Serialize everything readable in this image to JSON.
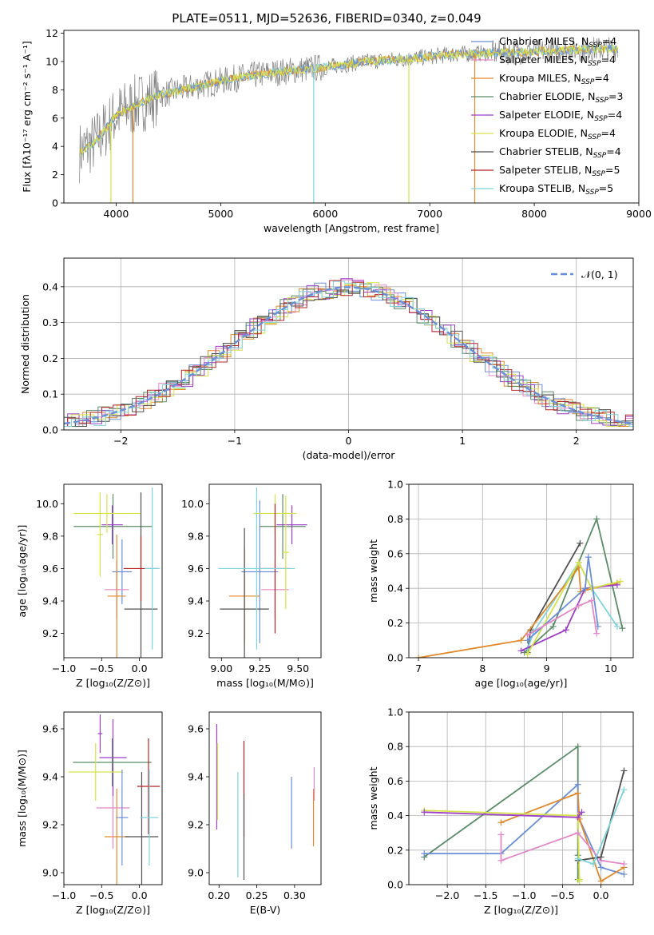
{
  "colors": {
    "gray": "#808080",
    "palette": [
      "#6b8fd6",
      "#e388c8",
      "#e08a2c",
      "#5b8c68",
      "#9d3fc9",
      "#d6e24a",
      "#505050",
      "#b52525",
      "#7fd3db"
    ]
  },
  "chart_data": [
    {
      "id": "spectrum",
      "type": "line",
      "title": "PLATE=0511, MJD=52636, FIBERID=0340, z=0.049",
      "xlabel": "wavelength [Angstrom, rest frame]",
      "ylabel": "Flux [fλ10⁻¹⁷ erg cm⁻² s⁻¹ A⁻¹]",
      "xlim": [
        3500,
        9000
      ],
      "ylim": [
        0,
        12.2
      ],
      "xticks": [
        "4000",
        "5000",
        "6000",
        "7000",
        "8000",
        "9000"
      ],
      "yticks": [
        "0",
        "2",
        "4",
        "6",
        "8",
        "10",
        "12"
      ],
      "legend_position": "right",
      "legend": [
        {
          "name": "Chabrier MILES",
          "nssp": "4",
          "color": "#6b8fd6"
        },
        {
          "name": "Salpeter MILES",
          "nssp": "4",
          "color": "#e388c8"
        },
        {
          "name": "Kroupa MILES",
          "nssp": "4",
          "color": "#e08a2c"
        },
        {
          "name": "Chabrier ELODIE",
          "nssp": "3",
          "color": "#5b8c68"
        },
        {
          "name": "Salpeter ELODIE",
          "nssp": "4",
          "color": "#9d3fc9"
        },
        {
          "name": "Kroupa ELODIE",
          "nssp": "4",
          "color": "#d6e24a"
        },
        {
          "name": "Chabrier STELIB",
          "nssp": "4",
          "color": "#505050"
        },
        {
          "name": "Salpeter STELIB",
          "nssp": "5",
          "color": "#b52525"
        },
        {
          "name": "Kroupa STELIB",
          "nssp": "5",
          "color": "#7fd3db"
        }
      ],
      "continuum": {
        "x": [
          3650,
          3800,
          4000,
          4200,
          4400,
          4800,
          5200,
          5600,
          6000,
          6400,
          6800,
          7200,
          7600,
          8000,
          8400,
          8800
        ],
        "y": [
          3.6,
          4.3,
          6.2,
          7.0,
          7.6,
          8.3,
          8.9,
          9.3,
          9.6,
          10.0,
          10.2,
          10.5,
          10.6,
          10.7,
          10.85,
          10.9
        ]
      },
      "dips": [
        {
          "x": 4160,
          "y": 0,
          "color": "#e08a2c"
        },
        {
          "x": 5890,
          "y": 0,
          "color": "#7fd3db"
        },
        {
          "x": 6800,
          "y": 0,
          "color": "#d6e24a"
        },
        {
          "x": 7430,
          "y": 0,
          "color": "#e08a2c"
        },
        {
          "x": 3950,
          "y": 0,
          "color": "#d6e24a"
        }
      ]
    },
    {
      "id": "residuals",
      "type": "area",
      "xlabel": "(data-model)/error",
      "ylabel": "Normed distribution",
      "xlim": [
        -2.5,
        2.5
      ],
      "ylim": [
        0,
        0.48
      ],
      "xticks": [
        "−2",
        "−1",
        "0",
        "1",
        "2"
      ],
      "yticks": [
        "0.0",
        "0.1",
        "0.2",
        "0.3",
        "0.4"
      ],
      "grid": true,
      "legend_position": "top-right",
      "legend_label": "𝒩(0, 1)",
      "legend_color": "#6b8fd6"
    },
    {
      "id": "age_vs_Z",
      "type": "scatter",
      "xlabel": "Z [log₁₀(Z/Z⊙)]",
      "ylabel": "age  [log₁₀(age/yr)]",
      "xlim": [
        -1.0,
        0.3
      ],
      "ylim": [
        9.05,
        10.12
      ],
      "xticks": [
        "−1.0",
        "−0.5",
        "0.0"
      ],
      "yticks": [
        "9.2",
        "9.4",
        "9.6",
        "9.8",
        "10.0"
      ],
      "points": [
        {
          "x": -0.23,
          "y": 9.58,
          "xerr": 0.13,
          "yerr": 0.2,
          "c": 0
        },
        {
          "x": -0.3,
          "y": 9.47,
          "xerr": 0.16,
          "yerr": 0.18,
          "c": 1
        },
        {
          "x": -0.3,
          "y": 9.43,
          "xerr": 0.12,
          "yerr": 0.38,
          "c": 2
        },
        {
          "x": -0.35,
          "y": 9.86,
          "xerr": 0.52,
          "yerr": 0.2,
          "c": 3
        },
        {
          "x": -0.36,
          "y": 9.87,
          "xerr": 0.14,
          "yerr": 0.12,
          "c": 4
        },
        {
          "x": -0.43,
          "y": 9.94,
          "xerr": 0.44,
          "yerr": 0.12,
          "c": 5
        },
        {
          "x": 0.02,
          "y": 9.35,
          "xerr": 0.22,
          "yerr": 0.72,
          "c": 6
        },
        {
          "x": 0.02,
          "y": 9.6,
          "xerr": 0.23,
          "yerr": 0.2,
          "c": 7
        },
        {
          "x": 0.17,
          "y": 9.6,
          "xerr": 0.1,
          "yerr": 0.5,
          "c": 8
        },
        {
          "x": -0.52,
          "y": 9.81,
          "xerr": 0.04,
          "yerr": 0.26,
          "c": 5
        }
      ]
    },
    {
      "id": "age_vs_mass",
      "type": "scatter",
      "xlabel": "mass [log₁₀(M/M⊙)]",
      "ylabel": "",
      "xlim": [
        8.92,
        9.65
      ],
      "ylim": [
        9.05,
        10.12
      ],
      "xticks": [
        "9.00",
        "9.25",
        "9.50"
      ],
      "yticks": [
        "9.2",
        "9.4",
        "9.6",
        "9.8",
        "10.0"
      ],
      "points": [
        {
          "x": 9.25,
          "y": 9.58,
          "xerr": 0.12,
          "yerr": 0.44,
          "c": 0
        },
        {
          "x": 9.35,
          "y": 9.47,
          "xerr": 0.09,
          "yerr": 0.18,
          "c": 1
        },
        {
          "x": 9.15,
          "y": 9.43,
          "xerr": 0.1,
          "yerr": 0.3,
          "c": 2
        },
        {
          "x": 9.4,
          "y": 9.86,
          "xerr": 0.15,
          "yerr": 0.2,
          "c": 3
        },
        {
          "x": 9.46,
          "y": 9.87,
          "xerr": 0.1,
          "yerr": 0.12,
          "c": 4
        },
        {
          "x": 9.35,
          "y": 9.94,
          "xerr": 0.14,
          "yerr": 0.12,
          "c": 5
        },
        {
          "x": 9.15,
          "y": 9.35,
          "xerr": 0.16,
          "yerr": 0.5,
          "c": 6
        },
        {
          "x": 9.35,
          "y": 9.6,
          "xerr": 0.1,
          "yerr": 0.4,
          "c": 7
        },
        {
          "x": 9.23,
          "y": 9.6,
          "xerr": 0.25,
          "yerr": 0.5,
          "c": 8
        },
        {
          "x": 9.42,
          "y": 9.7,
          "xerr": 0.02,
          "yerr": 0.35,
          "c": 5
        }
      ]
    },
    {
      "id": "massweight_vs_age",
      "type": "line",
      "xlabel": "age  [log₁₀(age/yr)]",
      "ylabel": "mass weight",
      "xlim": [
        6.85,
        10.35
      ],
      "ylim": [
        0,
        1.0
      ],
      "xticks": [
        "7",
        "8",
        "9",
        "10"
      ],
      "yticks": [
        "0.0",
        "0.2",
        "0.4",
        "0.6",
        "0.8",
        "1.0"
      ],
      "grid": true,
      "series": [
        {
          "c": 6,
          "x": [
            8.7,
            8.75,
            9.52
          ],
          "y": [
            0.03,
            0.16,
            0.66
          ]
        },
        {
          "c": 3,
          "x": [
            8.65,
            9.1,
            9.5,
            9.78,
            10.18
          ],
          "y": [
            0.03,
            0.18,
            0.55,
            0.8,
            0.17
          ]
        },
        {
          "c": 8,
          "x": [
            8.7,
            8.8,
            9.5,
            9.7,
            10.1
          ],
          "y": [
            0.05,
            0.15,
            0.55,
            0.4,
            0.18
          ]
        },
        {
          "c": 2,
          "x": [
            7.0,
            8.6,
            9.5,
            9.53,
            9.6,
            10.1
          ],
          "y": [
            0.0,
            0.1,
            0.52,
            0.38,
            0.39,
            0.43
          ]
        },
        {
          "c": 4,
          "x": [
            8.6,
            9.3,
            9.6,
            10.1
          ],
          "y": [
            0.04,
            0.16,
            0.4,
            0.42
          ]
        },
        {
          "c": 5,
          "x": [
            8.7,
            9.5,
            9.7,
            10.15
          ],
          "y": [
            0.02,
            0.55,
            0.4,
            0.44
          ]
        },
        {
          "c": 0,
          "x": [
            8.7,
            9.6,
            9.65,
            9.8
          ],
          "y": [
            0.1,
            0.4,
            0.58,
            0.18
          ]
        },
        {
          "c": 1,
          "x": [
            8.7,
            9.5,
            9.7,
            9.78
          ],
          "y": [
            0.13,
            0.3,
            0.33,
            0.14
          ]
        }
      ]
    },
    {
      "id": "mass_vs_Z",
      "type": "scatter",
      "xlabel": "Z [log₁₀(Z/Z⊙)]",
      "ylabel": "mass [log₁₀(M/M⊙)]",
      "xlim": [
        -1.0,
        0.3
      ],
      "ylim": [
        8.95,
        9.67
      ],
      "xticks": [
        "−1.0",
        "−0.5",
        "0.0"
      ],
      "yticks": [
        "9.0",
        "9.2",
        "9.4",
        "9.6"
      ],
      "points": [
        {
          "x": -0.3,
          "y": 9.15,
          "xerr": 0.16,
          "yerr": 0.2,
          "c": 2
        },
        {
          "x": -0.35,
          "y": 9.27,
          "xerr": 0.22,
          "yerr": 0.17,
          "c": 1
        },
        {
          "x": -0.35,
          "y": 9.48,
          "xerr": 0.18,
          "yerr": 0.16,
          "c": 4
        },
        {
          "x": -0.36,
          "y": 9.46,
          "xerr": 0.52,
          "yerr": 0.1,
          "c": 3
        },
        {
          "x": -0.58,
          "y": 9.42,
          "xerr": 0.36,
          "yerr": 0.12,
          "c": 5
        },
        {
          "x": 0.03,
          "y": 9.15,
          "xerr": 0.22,
          "yerr": 0.27,
          "c": 6
        },
        {
          "x": 0.12,
          "y": 9.36,
          "xerr": 0.15,
          "yerr": 0.2,
          "c": 7
        },
        {
          "x": 0.13,
          "y": 9.23,
          "xerr": 0.12,
          "yerr": 0.2,
          "c": 8
        },
        {
          "x": -0.23,
          "y": 9.23,
          "xerr": 0.08,
          "yerr": 0.2,
          "c": 0
        },
        {
          "x": -0.52,
          "y": 9.58,
          "xerr": 0.03,
          "yerr": 0.08,
          "c": 4
        }
      ]
    },
    {
      "id": "mass_vs_EBV",
      "type": "scatter",
      "xlabel": "E(B-V)",
      "ylabel": "",
      "xlim": [
        0.187,
        0.335
      ],
      "ylim": [
        8.95,
        9.67
      ],
      "xticks": [
        "0.20",
        "0.25",
        "0.30"
      ],
      "yticks": [
        "9.0",
        "9.2",
        "9.4",
        "9.6"
      ],
      "points": [
        {
          "x": 0.197,
          "y": 9.4,
          "yerr": 0.22,
          "c": 4
        },
        {
          "x": 0.198,
          "y": 9.38,
          "yerr": 0.16,
          "c": 5
        },
        {
          "x": 0.225,
          "y": 9.2,
          "yerr": 0.22,
          "c": 8
        },
        {
          "x": 0.233,
          "y": 9.35,
          "yerr": 0.2,
          "c": 7
        },
        {
          "x": 0.233,
          "y": 9.15,
          "yerr": 0.18,
          "c": 6
        },
        {
          "x": 0.296,
          "y": 9.25,
          "yerr": 0.15,
          "c": 0
        },
        {
          "x": 0.325,
          "y": 9.23,
          "yerr": 0.12,
          "c": 2
        },
        {
          "x": 0.326,
          "y": 9.37,
          "yerr": 0.07,
          "c": 1
        }
      ]
    },
    {
      "id": "massweight_vs_Z",
      "type": "line",
      "xlabel": "Z [log₁₀(Z/Z⊙)]",
      "ylabel": "mass weight",
      "xlim": [
        -2.5,
        0.42
      ],
      "ylim": [
        0,
        1.0
      ],
      "xticks": [
        "−2.0",
        "−1.5",
        "−1.0",
        "−0.5",
        "0.0"
      ],
      "yticks": [
        "0.0",
        "0.2",
        "0.4",
        "0.6",
        "0.8",
        "1.0"
      ],
      "grid": true,
      "series": [
        {
          "c": 3,
          "x": [
            -2.3,
            -0.3,
            -0.3,
            -0.3
          ],
          "y": [
            0.16,
            0.8,
            0.17,
            0.03
          ]
        },
        {
          "c": 0,
          "x": [
            -2.3,
            -1.3,
            -0.3,
            -0.3,
            0.0,
            0.3
          ],
          "y": [
            0.18,
            0.18,
            0.58,
            0.4,
            0.1,
            0.06
          ]
        },
        {
          "c": 2,
          "x": [
            -1.3,
            -0.3,
            -0.28,
            0.0,
            0.3
          ],
          "y": [
            0.36,
            0.53,
            0.38,
            0.02,
            0.1
          ]
        },
        {
          "c": 5,
          "x": [
            -2.3,
            -0.3,
            -0.28,
            -0.28
          ],
          "y": [
            0.43,
            0.4,
            0.03,
            0.02
          ]
        },
        {
          "c": 4,
          "x": [
            -2.3,
            -0.3,
            -0.25
          ],
          "y": [
            0.42,
            0.39,
            0.42
          ]
        },
        {
          "c": 1,
          "x": [
            -1.3,
            -1.3,
            -0.3,
            0.0,
            0.3
          ],
          "y": [
            0.29,
            0.14,
            0.3,
            0.14,
            0.12
          ]
        },
        {
          "c": 6,
          "x": [
            -0.3,
            0.0,
            0.3
          ],
          "y": [
            0.14,
            0.16,
            0.66
          ]
        },
        {
          "c": 8,
          "x": [
            -0.3,
            -0.1,
            0.3
          ],
          "y": [
            0.15,
            0.12,
            0.55
          ]
        }
      ]
    }
  ]
}
